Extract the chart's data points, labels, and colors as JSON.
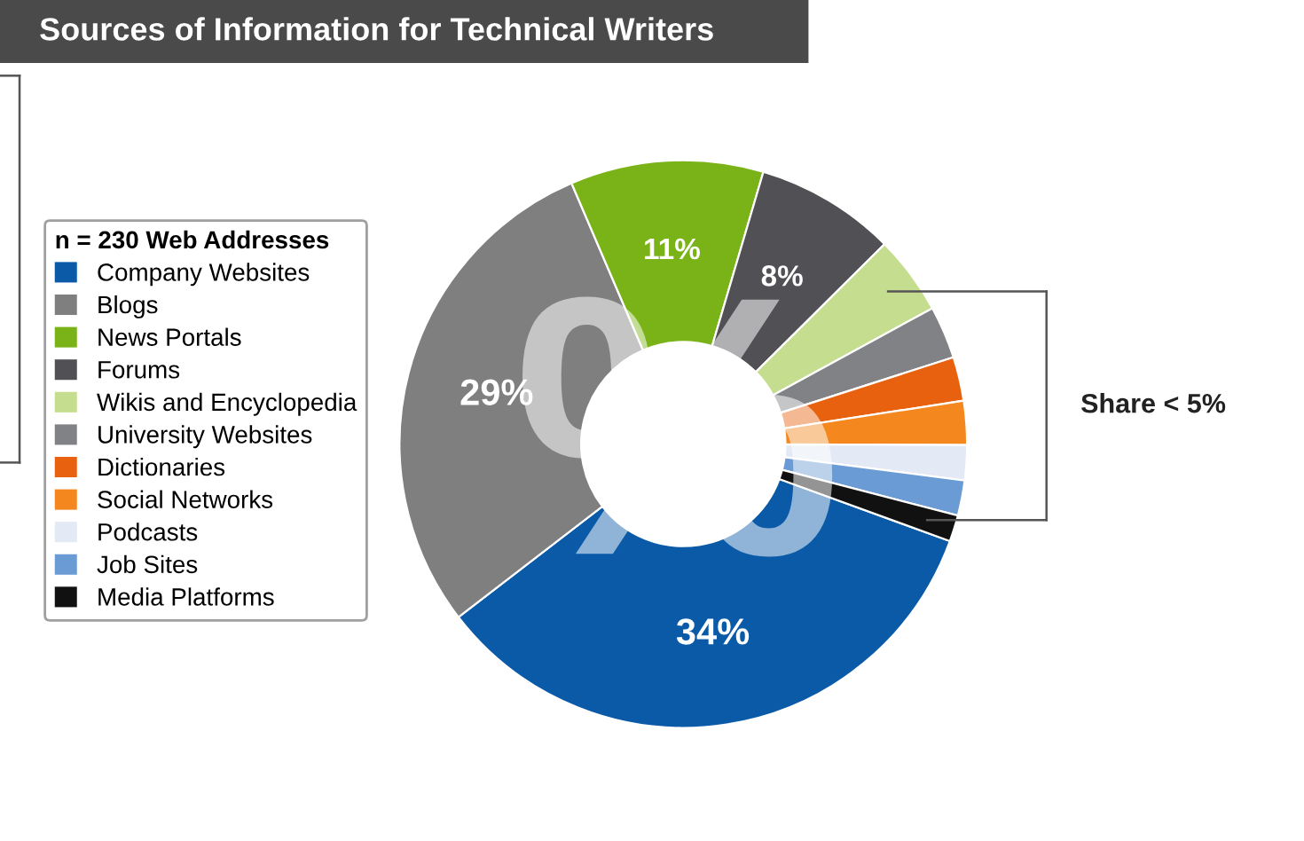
{
  "chart_data": {
    "type": "donut",
    "title": "Sources of Information for Technical Writers",
    "legend_title": "n = 230 Web Addresses",
    "legend": "left",
    "categories": [
      "Company Websites",
      "Blogs",
      "News Portals",
      "Forums",
      "Wikis and Encyclopedia",
      "University Websites",
      "Dictionaries",
      "Social Networks",
      "Podcasts",
      "Job Sites",
      "Media Platforms"
    ],
    "values": [
      34,
      29,
      11,
      8,
      4.5,
      3,
      2.5,
      2.5,
      2,
      2,
      1.5
    ],
    "colors": [
      "#0a5aa8",
      "#7f7f7f",
      "#7ab317",
      "#505055",
      "#c5dd8e",
      "#808285",
      "#e8610e",
      "#f5871f",
      "#e3e9f5",
      "#6a9bd4",
      "#111111"
    ],
    "value_labels": [
      "34%",
      "29%",
      "11%",
      "8%",
      null,
      null,
      null,
      null,
      null,
      null,
      null
    ],
    "annotations": [
      "%",
      "Share < 5%"
    ]
  }
}
